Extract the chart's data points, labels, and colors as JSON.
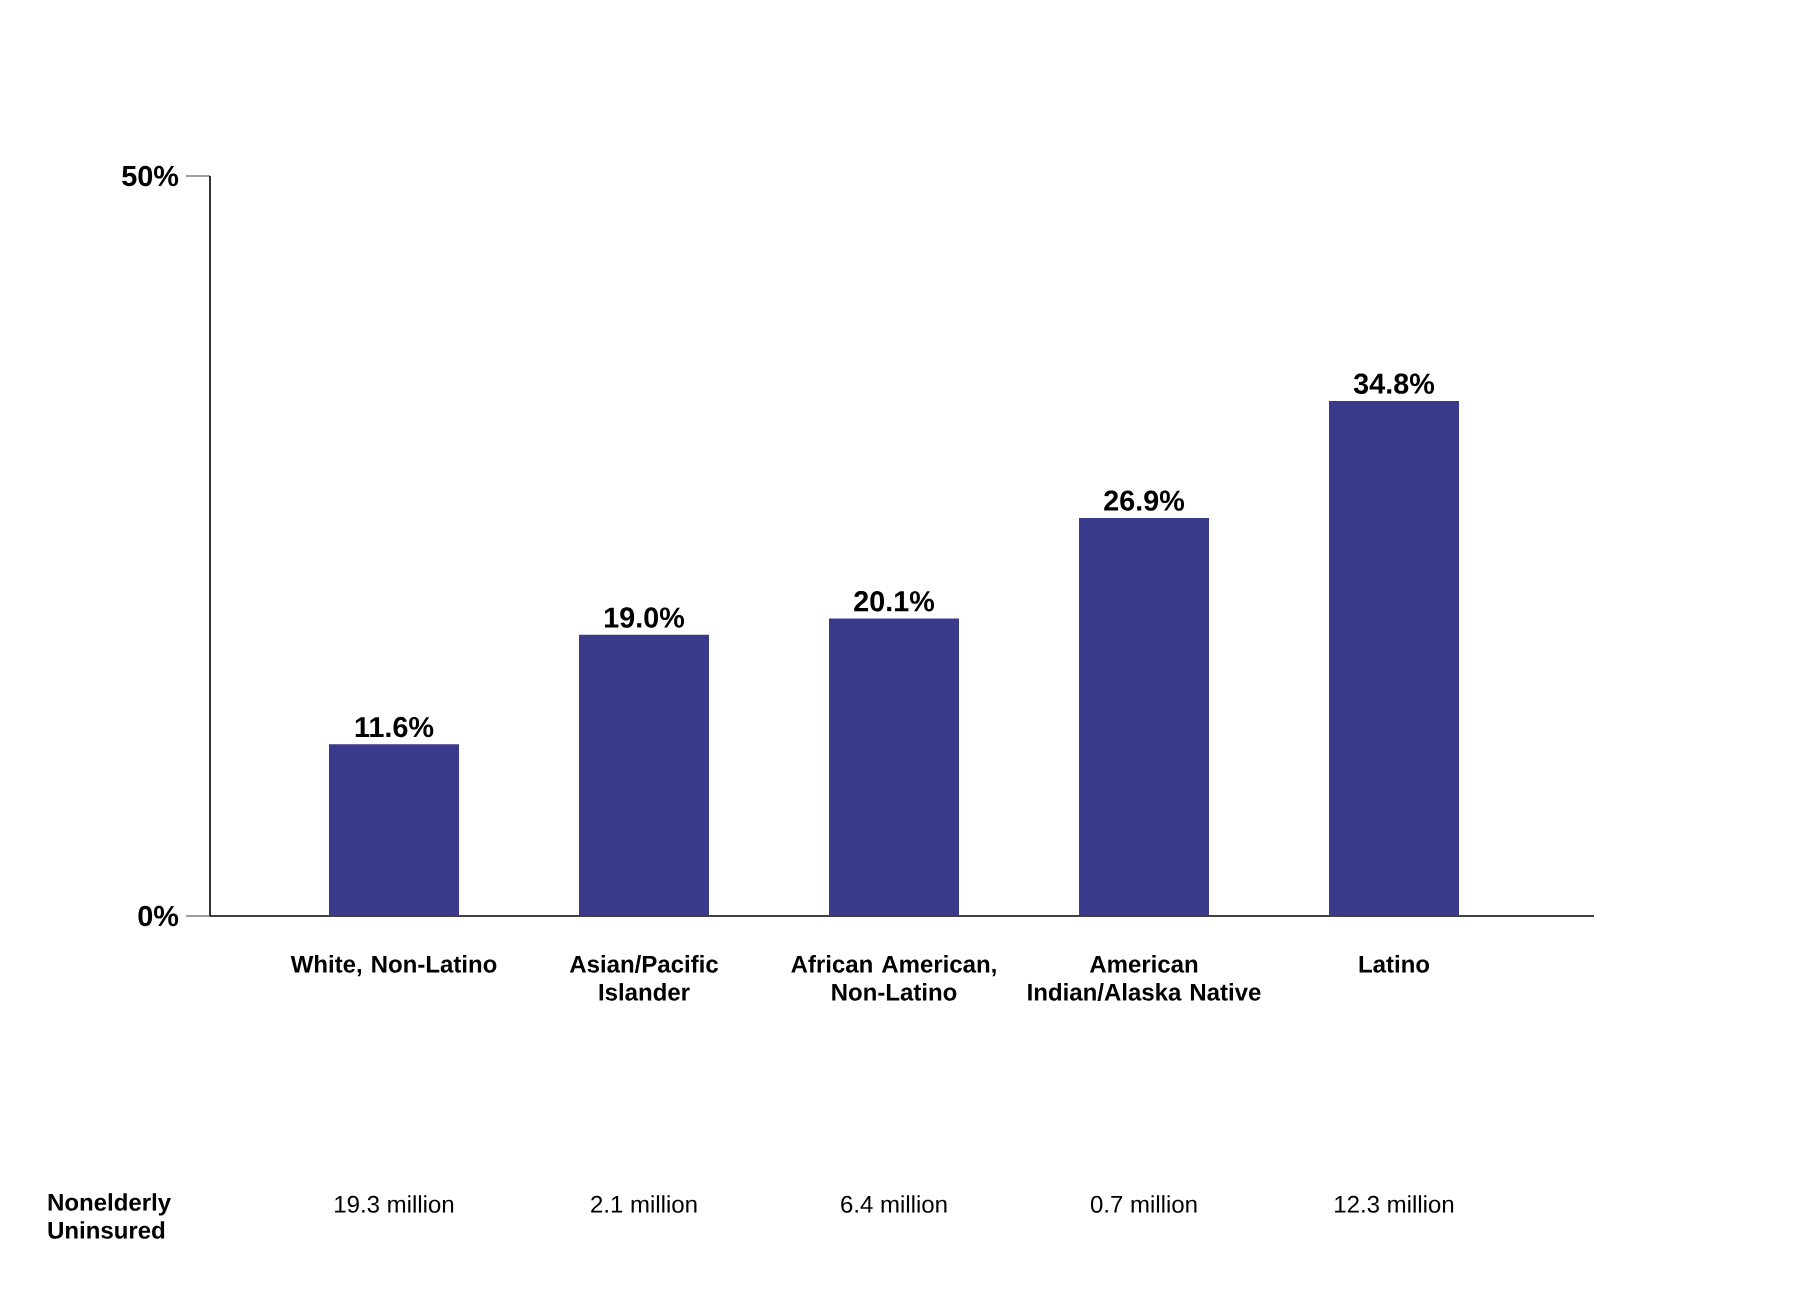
{
  "chart_data": {
    "type": "bar",
    "categories": [
      "White, Non-Latino",
      "Asian/Pacific Islander",
      "African American, Non-Latino",
      "American Indian/Alaska Native",
      "Latino"
    ],
    "values": [
      11.6,
      19.0,
      20.1,
      26.9,
      34.8
    ],
    "value_labels": [
      "11.6%",
      "19.0%",
      "20.1%",
      "26.9%",
      "34.8%"
    ],
    "color": "#3a3a8a",
    "ylim": [
      0,
      50
    ],
    "yticks": [
      {
        "value": 0,
        "label": "0%"
      },
      {
        "value": 50,
        "label": "50%"
      }
    ],
    "grid": false,
    "annotations": [
      "Nonelderly Uninsured",
      "19.3 million",
      "2.1 million",
      "6.4 million",
      "0.7 million",
      "12.3 million"
    ]
  }
}
